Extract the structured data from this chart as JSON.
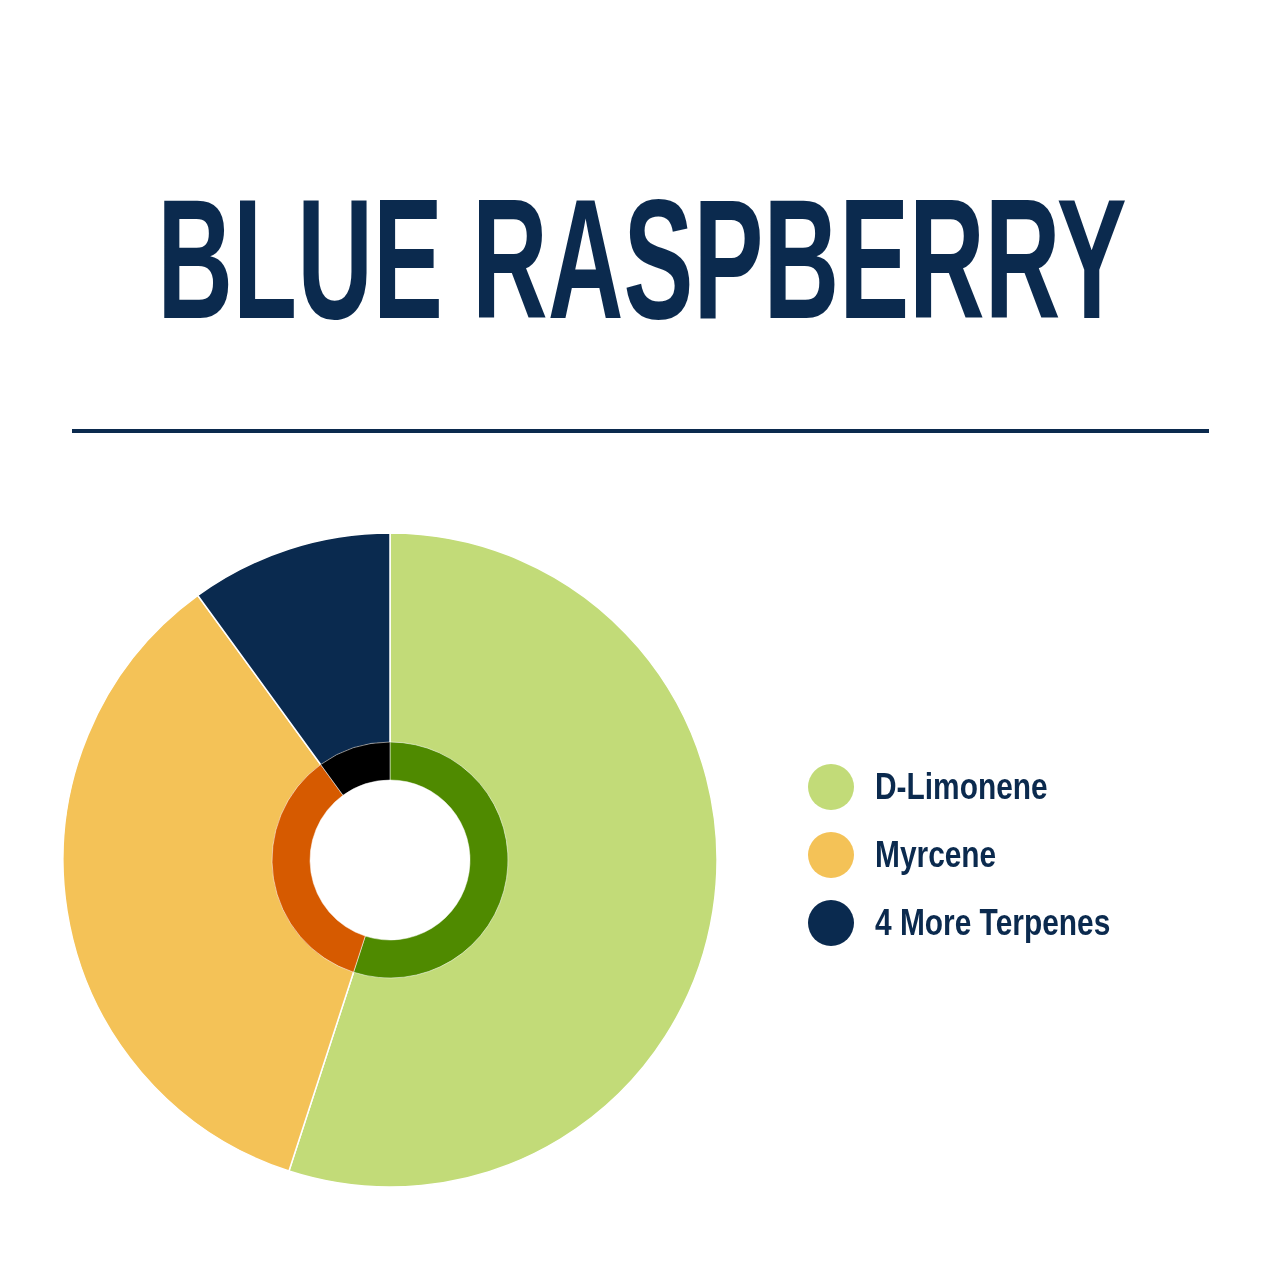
{
  "chart_data": {
    "type": "donut",
    "title": "BLUE RASPBERRY",
    "categories": [
      "D-Limonene",
      "Myrcene",
      "4 More Terpenes"
    ],
    "series": [
      {
        "values": [
          55,
          35,
          10
        ],
        "colors": [
          "#c2db78",
          "#f4c257",
          "#0a2a4f"
        ]
      },
      {
        "values": [
          55,
          35,
          10
        ],
        "colors": [
          "#4f8a00",
          "#d65a00",
          "#000000"
        ]
      }
    ],
    "legend": "right"
  }
}
